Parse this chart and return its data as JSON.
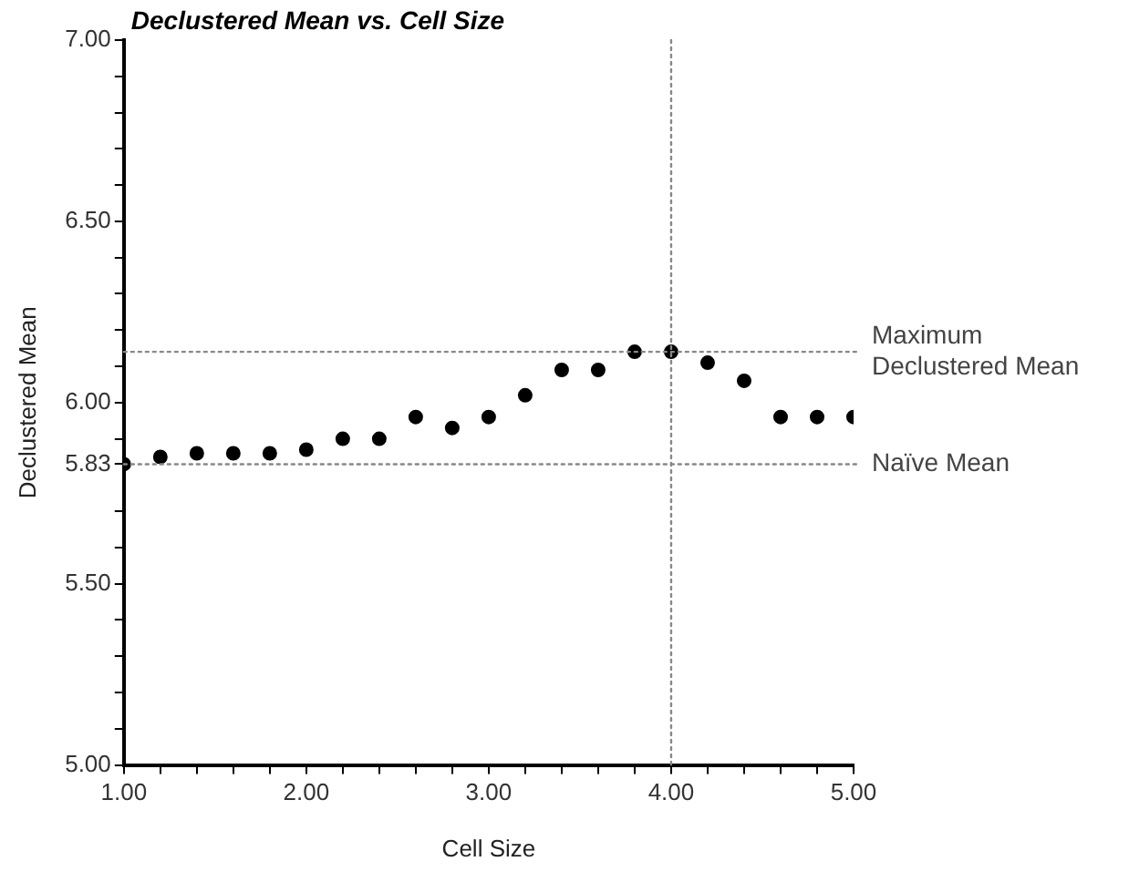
{
  "chart_data": {
    "type": "scatter",
    "title": "Declustered Mean vs. Cell Size",
    "xlabel": "Cell Size",
    "ylabel": "Declustered Mean",
    "x": [
      1.0,
      1.2,
      1.4,
      1.6,
      1.8,
      2.0,
      2.2,
      2.4,
      2.6,
      2.8,
      3.0,
      3.2,
      3.4,
      3.6,
      3.8,
      4.0,
      4.2,
      4.4,
      4.6,
      4.8,
      5.0
    ],
    "series": [
      {
        "color": "#000000",
        "values": [
          5.83,
          5.85,
          5.86,
          5.86,
          5.86,
          5.87,
          5.9,
          5.9,
          5.96,
          5.93,
          5.96,
          6.02,
          6.09,
          6.09,
          6.14,
          6.14,
          6.11,
          6.06,
          5.96,
          5.96,
          5.96
        ]
      }
    ],
    "xlim": [
      1,
      5
    ],
    "ylim": [
      5,
      7
    ],
    "xticks": [
      {
        "value": 1,
        "label": "1.00"
      },
      {
        "value": 1.2,
        "label": null
      },
      {
        "value": 1.4,
        "label": null
      },
      {
        "value": 1.6,
        "label": null
      },
      {
        "value": 1.8,
        "label": null
      },
      {
        "value": 2,
        "label": "2.00"
      },
      {
        "value": 2.2,
        "label": null
      },
      {
        "value": 2.4,
        "label": null
      },
      {
        "value": 2.6,
        "label": null
      },
      {
        "value": 2.8,
        "label": null
      },
      {
        "value": 3,
        "label": "3.00"
      },
      {
        "value": 3.2,
        "label": null
      },
      {
        "value": 3.4,
        "label": null
      },
      {
        "value": 3.6,
        "label": null
      },
      {
        "value": 3.8,
        "label": null
      },
      {
        "value": 4,
        "label": "4.00"
      },
      {
        "value": 4.2,
        "label": null
      },
      {
        "value": 4.4,
        "label": null
      },
      {
        "value": 4.6,
        "label": null
      },
      {
        "value": 4.8,
        "label": null
      },
      {
        "value": 5,
        "label": "5.00"
      }
    ],
    "yticks": [
      {
        "value": 5,
        "label": "5.00"
      },
      {
        "value": 5.1,
        "label": null
      },
      {
        "value": 5.2,
        "label": null
      },
      {
        "value": 5.3,
        "label": null
      },
      {
        "value": 5.4,
        "label": null
      },
      {
        "value": 5.5,
        "label": "5.50"
      },
      {
        "value": 5.6,
        "label": null
      },
      {
        "value": 5.7,
        "label": null
      },
      {
        "value": 5.83,
        "label": "5.83"
      },
      {
        "value": 5.9,
        "label": null
      },
      {
        "value": 6,
        "label": "6.00"
      },
      {
        "value": 6.1,
        "label": null
      },
      {
        "value": 6.2,
        "label": null
      },
      {
        "value": 6.3,
        "label": null
      },
      {
        "value": 6.4,
        "label": null
      },
      {
        "value": 6.5,
        "label": "6.50"
      },
      {
        "value": 6.6,
        "label": null
      },
      {
        "value": 6.7,
        "label": null
      },
      {
        "value": 6.8,
        "label": null
      },
      {
        "value": 6.9,
        "label": null
      },
      {
        "value": 7,
        "label": "7.00"
      }
    ],
    "ref_lines": [
      {
        "axis": "y",
        "value": 6.14,
        "label": "Maximum\nDeclustered Mean",
        "line_style": "dotted"
      },
      {
        "axis": "y",
        "value": 5.83,
        "label": "Naïve Mean",
        "line_style": "dotted"
      },
      {
        "axis": "x",
        "value": 4,
        "label": null,
        "line_style": "dotted"
      }
    ],
    "grid": false,
    "legend": false,
    "marker": "circle"
  }
}
